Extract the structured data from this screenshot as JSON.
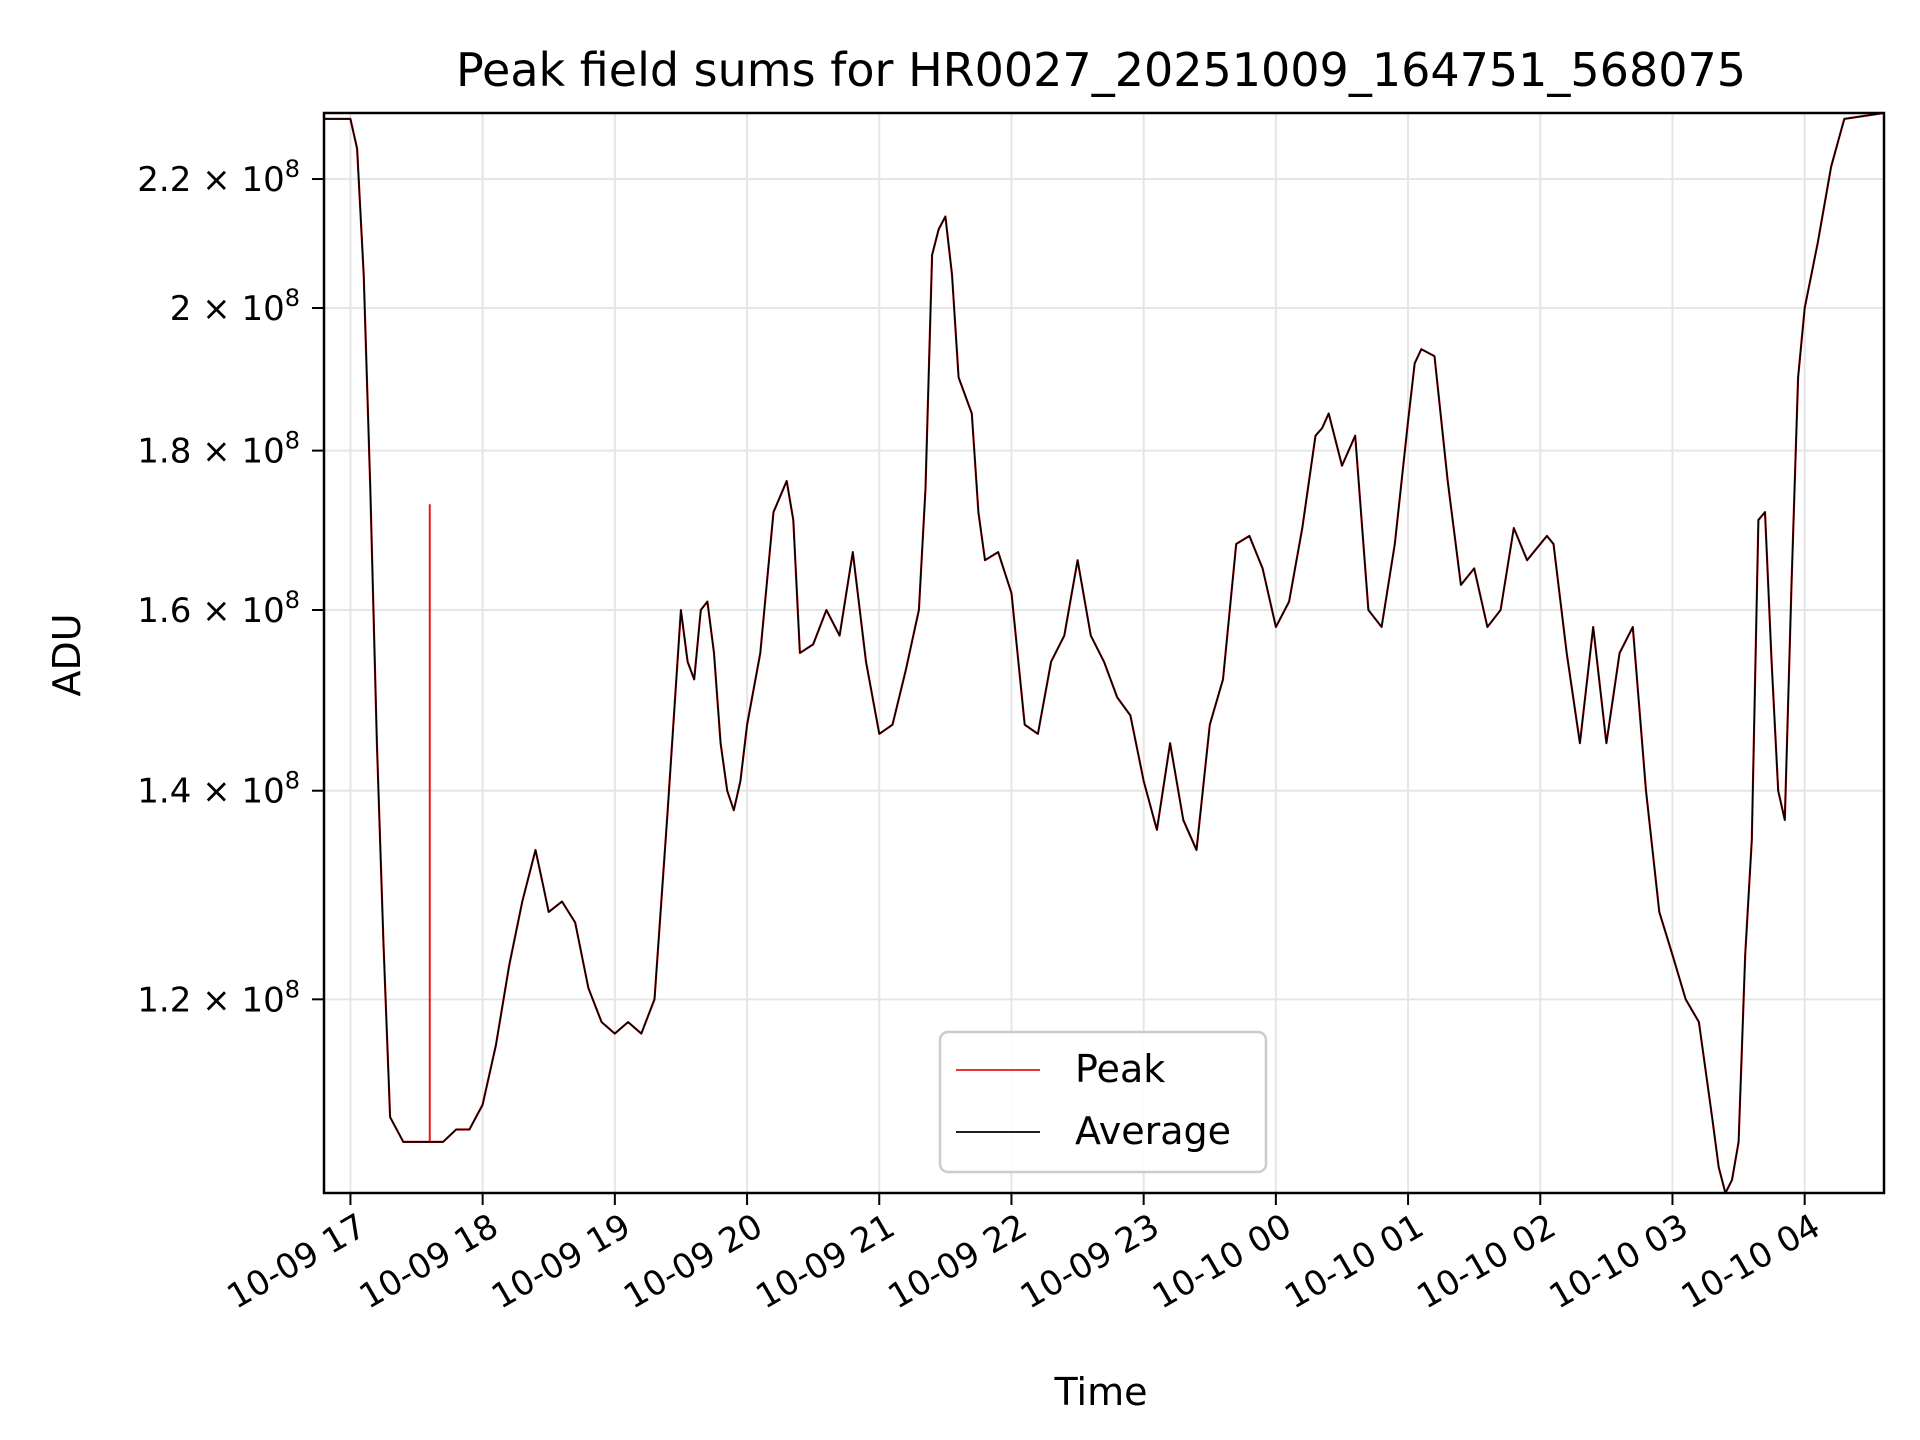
{
  "chart_data": {
    "type": "line",
    "title": "Peak field sums for HR0027_20251009_164751_568075",
    "xlabel": "Time",
    "ylabel": "ADU",
    "yscale": "log",
    "grid": true,
    "legend_position": "lower-center",
    "xlim": [
      16.8,
      28.6
    ],
    "ylim": [
      104000000,
      231000000
    ],
    "xticks": [
      {
        "value": 17,
        "label": "10-09 17"
      },
      {
        "value": 18,
        "label": "10-09 18"
      },
      {
        "value": 19,
        "label": "10-09 19"
      },
      {
        "value": 20,
        "label": "10-09 20"
      },
      {
        "value": 21,
        "label": "10-09 21"
      },
      {
        "value": 22,
        "label": "10-09 22"
      },
      {
        "value": 23,
        "label": "10-09 23"
      },
      {
        "value": 24,
        "label": "10-10 00"
      },
      {
        "value": 25,
        "label": "10-10 01"
      },
      {
        "value": 26,
        "label": "10-10 02"
      },
      {
        "value": 27,
        "label": "10-10 03"
      },
      {
        "value": 28,
        "label": "10-10 04"
      }
    ],
    "yticks": [
      {
        "value": 120000000,
        "mantissa": "1.2",
        "exp": "8"
      },
      {
        "value": 140000000,
        "mantissa": "1.4",
        "exp": "8"
      },
      {
        "value": 160000000,
        "mantissa": "1.6",
        "exp": "8"
      },
      {
        "value": 180000000,
        "mantissa": "1.8",
        "exp": "8"
      },
      {
        "value": 200000000,
        "mantissa": "2",
        "exp": "8"
      },
      {
        "value": 220000000,
        "mantissa": "2.2",
        "exp": "8"
      }
    ],
    "x": [
      16.8,
      16.95,
      17.0,
      17.05,
      17.1,
      17.15,
      17.2,
      17.25,
      17.3,
      17.4,
      17.5,
      17.6,
      17.7,
      17.8,
      17.9,
      18.0,
      18.1,
      18.2,
      18.3,
      18.4,
      18.45,
      18.5,
      18.6,
      18.7,
      18.8,
      18.9,
      19.0,
      19.1,
      19.2,
      19.3,
      19.4,
      19.5,
      19.55,
      19.6,
      19.65,
      19.7,
      19.75,
      19.8,
      19.85,
      19.9,
      19.95,
      20.0,
      20.1,
      20.2,
      20.3,
      20.35,
      20.4,
      20.5,
      20.6,
      20.7,
      20.8,
      20.9,
      21.0,
      21.1,
      21.2,
      21.3,
      21.35,
      21.4,
      21.45,
      21.5,
      21.55,
      21.6,
      21.7,
      21.75,
      21.8,
      21.9,
      22.0,
      22.1,
      22.2,
      22.3,
      22.4,
      22.5,
      22.6,
      22.7,
      22.8,
      22.9,
      23.0,
      23.1,
      23.2,
      23.3,
      23.4,
      23.5,
      23.6,
      23.7,
      23.8,
      23.9,
      24.0,
      24.1,
      24.2,
      24.3,
      24.35,
      24.4,
      24.5,
      24.6,
      24.7,
      24.8,
      24.9,
      25.0,
      25.05,
      25.1,
      25.2,
      25.3,
      25.4,
      25.5,
      25.6,
      25.7,
      25.8,
      25.9,
      26.0,
      26.05,
      26.1,
      26.2,
      26.3,
      26.4,
      26.5,
      26.6,
      26.7,
      26.8,
      26.9,
      27.0,
      27.1,
      27.2,
      27.3,
      27.35,
      27.4,
      27.45,
      27.5,
      27.55,
      27.6,
      27.65,
      27.7,
      27.75,
      27.8,
      27.85,
      27.9,
      27.95,
      28.0,
      28.1,
      28.2,
      28.3,
      28.6
    ],
    "series": [
      {
        "name": "Average",
        "color": "#000000",
        "values": [
          230000000,
          230000000,
          230000000,
          225000000,
          205000000,
          175000000,
          145000000,
          125000000,
          110000000,
          108000000,
          108000000,
          108000000,
          108000000,
          109000000,
          109000000,
          111000000,
          116000000,
          123000000,
          129000000,
          134000000,
          131000000,
          128000000,
          129000000,
          127000000,
          121000000,
          118000000,
          117000000,
          118000000,
          117000000,
          120000000,
          138000000,
          160000000,
          154000000,
          152000000,
          160000000,
          161000000,
          155000000,
          145000000,
          140000000,
          138000000,
          141000000,
          147000000,
          155000000,
          172000000,
          176000000,
          171000000,
          155000000,
          156000000,
          160000000,
          157000000,
          167000000,
          154000000,
          146000000,
          147000000,
          153000000,
          160000000,
          175000000,
          208000000,
          212000000,
          214000000,
          205000000,
          190000000,
          185000000,
          172000000,
          166000000,
          167000000,
          162000000,
          147000000,
          146000000,
          154000000,
          157000000,
          166000000,
          157000000,
          154000000,
          150000000,
          148000000,
          141000000,
          136000000,
          145000000,
          137000000,
          134000000,
          147000000,
          152000000,
          168000000,
          169000000,
          165000000,
          158000000,
          161000000,
          170000000,
          182000000,
          183000000,
          185000000,
          178000000,
          182000000,
          160000000,
          158000000,
          168000000,
          184000000,
          192000000,
          194000000,
          193000000,
          176000000,
          163000000,
          165000000,
          158000000,
          160000000,
          170000000,
          166000000,
          168000000,
          169000000,
          168000000,
          155000000,
          145000000,
          158000000,
          145000000,
          155000000,
          158000000,
          140000000,
          128000000,
          124000000,
          120000000,
          118000000,
          110000000,
          106000000,
          104000000,
          105000000,
          108000000,
          124000000,
          135000000,
          171000000,
          172000000,
          154000000,
          140000000,
          137000000,
          163000000,
          190000000,
          200000000,
          210000000,
          222000000,
          230000000,
          231000000
        ]
      },
      {
        "name": "Peak",
        "color": "#e41a1c",
        "values": [
          230000000,
          230000000,
          230000000,
          225000000,
          205000000,
          175000000,
          145000000,
          125000000,
          110000000,
          108000000,
          108000000,
          108000000,
          108000000,
          109000000,
          109000000,
          111000000,
          116000000,
          123000000,
          129000000,
          134000000,
          131000000,
          128000000,
          129000000,
          127000000,
          121000000,
          118000000,
          117000000,
          118000000,
          117000000,
          120000000,
          138000000,
          160000000,
          154000000,
          152000000,
          160000000,
          161000000,
          155000000,
          145000000,
          140000000,
          138000000,
          141000000,
          147000000,
          155000000,
          172000000,
          176000000,
          171000000,
          155000000,
          156000000,
          160000000,
          157000000,
          167000000,
          154000000,
          146000000,
          147000000,
          153000000,
          160000000,
          175000000,
          208000000,
          212000000,
          214000000,
          205000000,
          190000000,
          185000000,
          172000000,
          166000000,
          167000000,
          162000000,
          147000000,
          146000000,
          154000000,
          157000000,
          166000000,
          157000000,
          154000000,
          150000000,
          148000000,
          141000000,
          136000000,
          145000000,
          137000000,
          134000000,
          147000000,
          152000000,
          168000000,
          169000000,
          165000000,
          158000000,
          161000000,
          170000000,
          182000000,
          183000000,
          185000000,
          178000000,
          182000000,
          160000000,
          158000000,
          168000000,
          184000000,
          192000000,
          194000000,
          193000000,
          176000000,
          163000000,
          165000000,
          158000000,
          160000000,
          170000000,
          166000000,
          168000000,
          169000000,
          168000000,
          155000000,
          145000000,
          158000000,
          145000000,
          155000000,
          158000000,
          140000000,
          128000000,
          124000000,
          120000000,
          118000000,
          110000000,
          106000000,
          104000000,
          105000000,
          108000000,
          124000000,
          135000000,
          171000000,
          172000000,
          154000000,
          140000000,
          137000000,
          163000000,
          190000000,
          200000000,
          210000000,
          222000000,
          230000000,
          231000000
        ],
        "spikes": [
          {
            "x": 17.6,
            "value": 173000000
          }
        ]
      }
    ],
    "legend": [
      {
        "label": "Peak",
        "color": "#e41a1c"
      },
      {
        "label": "Average",
        "color": "#000000"
      }
    ]
  }
}
